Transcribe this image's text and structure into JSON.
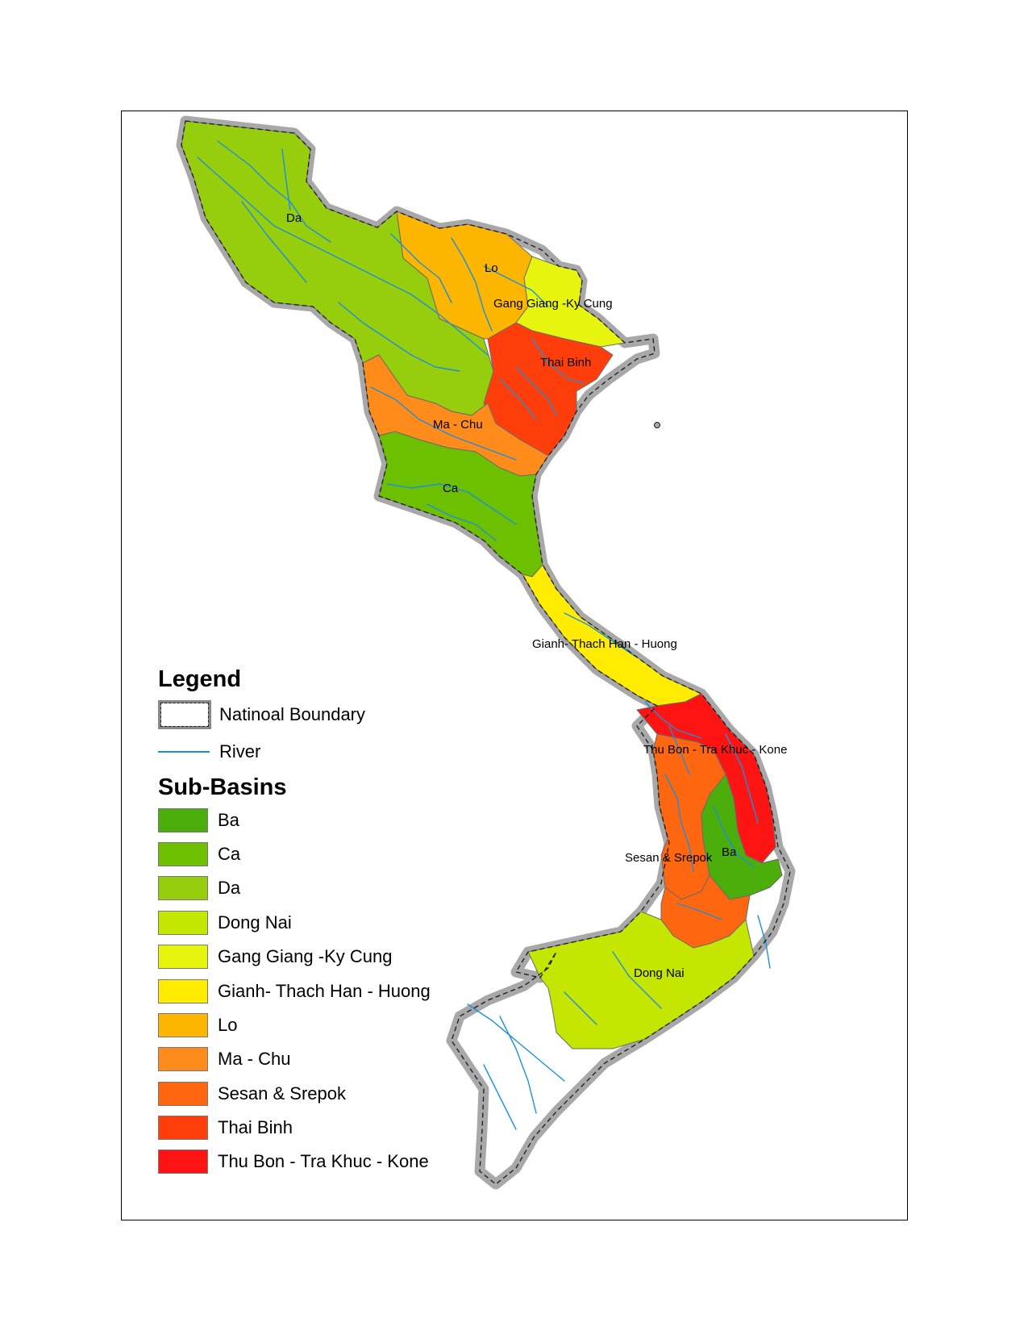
{
  "map": {
    "colors": {
      "boundary_fill": "#a8a8a8",
      "boundary_dash": "#1a1a1a",
      "river": "#1c8fdc",
      "subbasin_line": "#6b6b6b"
    },
    "basin_labels": [
      "Da",
      "Lo",
      "Gang Giang -Ky Cung",
      "Thai Binh",
      "Ma - Chu",
      "Ca",
      "Gianh- Thach Han - Huong",
      "Thu Bon - Tra Khuc - Kone",
      "Sesan & Srepok",
      "Ba",
      "Dong Nai"
    ]
  },
  "legend": {
    "title": "Legend",
    "boundary_label": "Natinoal Boundary",
    "river_label": "River",
    "subbasins_title": "Sub-Basins",
    "items": [
      {
        "label": "Ba",
        "color": "#4cae0a"
      },
      {
        "label": "Ca",
        "color": "#6cc000"
      },
      {
        "label": "Da",
        "color": "#96cd0c"
      },
      {
        "label": "Dong Nai",
        "color": "#c5e600"
      },
      {
        "label": "Gang Giang -Ky Cung",
        "color": "#e7f50e"
      },
      {
        "label": "Gianh- Thach Han - Huong",
        "color": "#ffec00"
      },
      {
        "label": "Lo",
        "color": "#fdb600"
      },
      {
        "label": "Ma - Chu",
        "color": "#ff8c1a"
      },
      {
        "label": "Sesan & Srepok",
        "color": "#ff6610"
      },
      {
        "label": "Thai Binh",
        "color": "#ff3e0c"
      },
      {
        "label": "Thu Bon - Tra Khuc - Kone",
        "color": "#ff1414"
      }
    ]
  }
}
